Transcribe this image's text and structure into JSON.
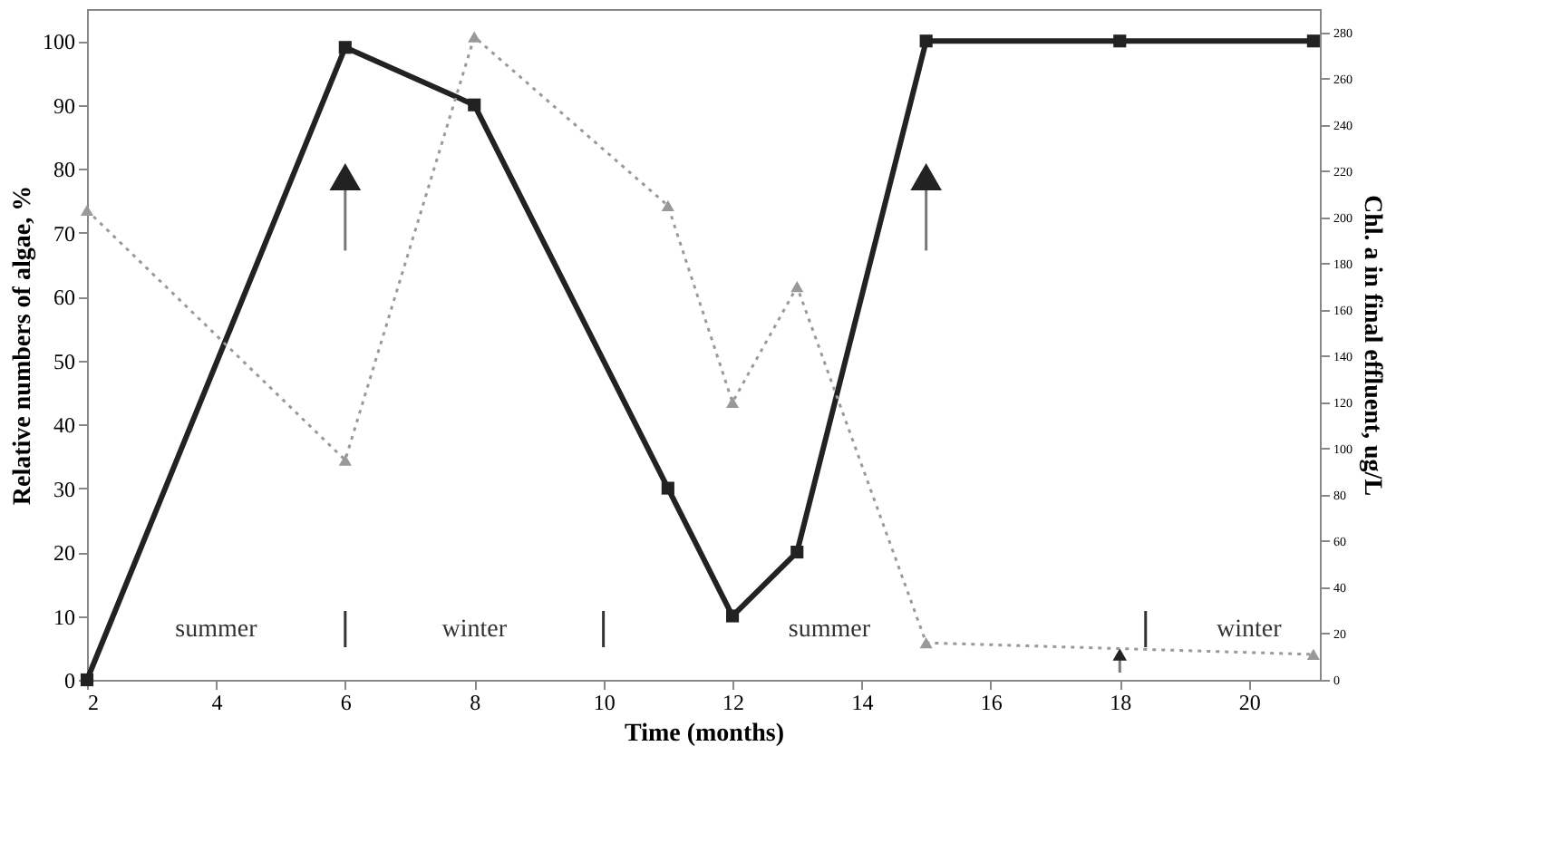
{
  "chart_data": {
    "type": "line",
    "xlabel": "Time (months)",
    "ylabel": "Relative numbers of algae, %",
    "y2label": "Chl. a in final effluent, ug/L",
    "xlim": [
      2,
      21.1
    ],
    "xticks": [
      2,
      4,
      6,
      8,
      10,
      12,
      14,
      16,
      18,
      20
    ],
    "ylim": [
      0,
      105
    ],
    "yticks": [
      0,
      10,
      20,
      30,
      40,
      50,
      60,
      70,
      80,
      90,
      100
    ],
    "y2lim": [
      0,
      290
    ],
    "y2ticks": [
      0,
      20,
      40,
      60,
      80,
      100,
      120,
      140,
      160,
      180,
      200,
      220,
      240,
      260,
      280
    ],
    "grid": false,
    "series": [
      {
        "color": "#222222",
        "marker": "square",
        "line_style": "solid",
        "x": [
          2,
          6,
          8,
          11,
          12,
          13,
          15,
          18,
          21
        ],
        "values": [
          0,
          99,
          90,
          30,
          10,
          20,
          100,
          100,
          100
        ]
      },
      {
        "color": "#999999",
        "marker": "triangle",
        "line_style": "dotted",
        "axis": "y2",
        "x": [
          2,
          6,
          8,
          11,
          12,
          13,
          15,
          21
        ],
        "values": [
          203,
          95,
          278,
          205,
          120,
          170,
          16,
          11
        ]
      }
    ],
    "annotations": [
      "summer",
      "winter",
      "summer",
      "winter"
    ]
  }
}
